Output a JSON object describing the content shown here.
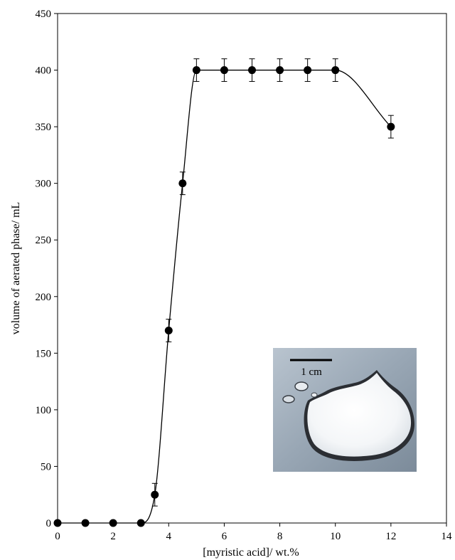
{
  "chart_data": {
    "type": "line",
    "title": "",
    "xlabel": "[myristic acid]/ wt.%",
    "ylabel": "volume of aerated phase/ mL",
    "xlim": [
      0,
      14
    ],
    "ylim": [
      0,
      450
    ],
    "x_ticks": [
      0,
      2,
      4,
      6,
      8,
      10,
      12,
      14
    ],
    "y_ticks": [
      0,
      50,
      100,
      150,
      200,
      250,
      300,
      350,
      400,
      450
    ],
    "grid": false,
    "legend": "none",
    "series": [
      {
        "x": [
          0,
          1,
          2,
          3,
          3.5,
          4,
          4.5,
          5,
          6,
          7,
          8,
          9,
          10,
          12
        ],
        "y": [
          0,
          0,
          0,
          0,
          25,
          170,
          300,
          400,
          400,
          400,
          400,
          400,
          400,
          350
        ],
        "error": [
          0,
          0,
          0,
          0,
          10,
          10,
          10,
          10,
          10,
          10,
          10,
          10,
          10,
          10
        ],
        "marker": "filled-circle",
        "line": "smooth",
        "color": "#000000"
      }
    ],
    "inset": {
      "scale_bar_label": "1 cm"
    }
  }
}
